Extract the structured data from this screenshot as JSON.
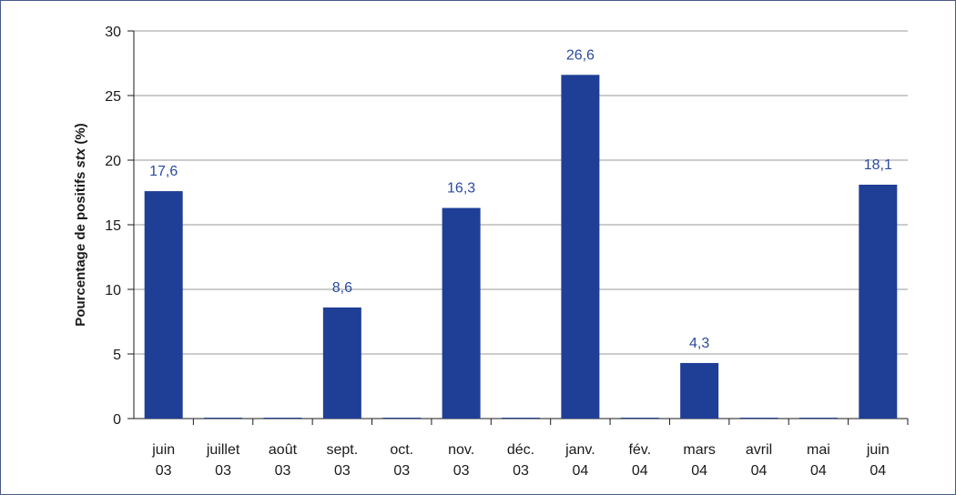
{
  "chart_data": {
    "type": "bar",
    "ylabel": "Pourcentage de positifs",
    "ylabel_italic": "stx",
    "ylabel_suffix": "(%)",
    "ylim": [
      0,
      30
    ],
    "yticks": [
      0,
      5,
      10,
      15,
      20,
      25,
      30
    ],
    "grid": true,
    "categories": [
      [
        "juin",
        "03"
      ],
      [
        "juillet",
        "03"
      ],
      [
        "août",
        "03"
      ],
      [
        "sept.",
        "03"
      ],
      [
        "oct.",
        "03"
      ],
      [
        "nov.",
        "03"
      ],
      [
        "déc.",
        "03"
      ],
      [
        "janv.",
        "04"
      ],
      [
        "fév.",
        "04"
      ],
      [
        "mars",
        "04"
      ],
      [
        "avril",
        "04"
      ],
      [
        "mai",
        "04"
      ],
      [
        "juin",
        "04"
      ]
    ],
    "values": [
      17.6,
      0,
      0,
      8.6,
      0,
      16.3,
      0,
      26.6,
      0,
      4.3,
      0,
      0,
      18.1
    ],
    "data_labels": [
      "17,6",
      "",
      "",
      "8,6",
      "",
      "16,3",
      "",
      "26,6",
      "",
      "4,3",
      "",
      "",
      "18,1"
    ],
    "colors": {
      "bar": "#1f3f96",
      "label": "#2a4a9e",
      "grid": "#9a9a9a",
      "frame": "#4a5a8c"
    }
  }
}
